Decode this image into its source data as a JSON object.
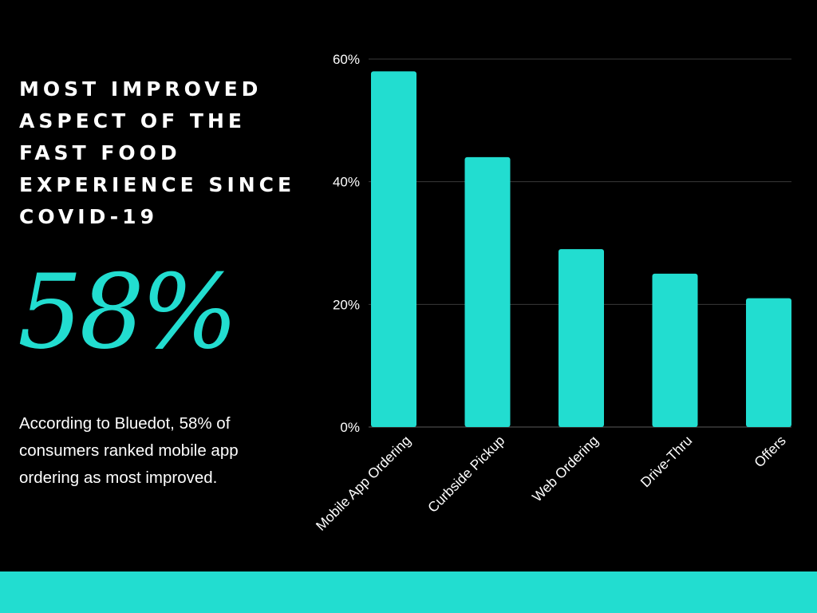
{
  "headline": "MOST IMPROVED ASPECT OF THE FAST FOOD EXPERIENCE SINCE COVID-19",
  "big_stat": "58%",
  "description": "According to Bluedot, 58% of consumers ranked mobile app ordering as most improved.",
  "colors": {
    "background": "#000000",
    "accent": "#22ddd0",
    "text": "#ffffff",
    "gridline": "#3a3a3a"
  },
  "chart_data": {
    "type": "bar",
    "title": "",
    "xlabel": "",
    "ylabel": "",
    "categories": [
      "Mobile App Ordering",
      "Curbside Pickup",
      "Web Ordering",
      "Drive-Thru",
      "Offers"
    ],
    "values": [
      58,
      44,
      29,
      25,
      21
    ],
    "unit": "%",
    "ylim": [
      0,
      60
    ],
    "yticks": [
      0,
      20,
      40,
      60
    ],
    "ytick_labels": [
      "0%",
      "20%",
      "40%",
      "60%"
    ],
    "grid": true
  }
}
